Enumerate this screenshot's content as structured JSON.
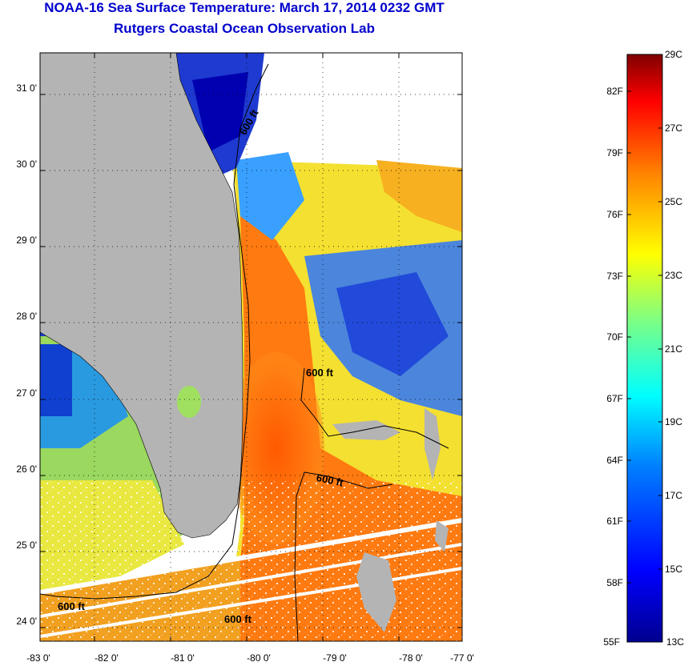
{
  "title": "NOAA-16 Sea Surface Temperature:  March 17, 2014 0232 GMT",
  "subtitle": "Rutgers Coastal Ocean Observation Lab",
  "map": {
    "lat_ticks": [
      "31 0'",
      "30 0'",
      "29 0'",
      "28 0'",
      "27 0'",
      "26 0'",
      "25 0'",
      "24 0'"
    ],
    "lon_ticks": [
      "-83 0'",
      "-82 0'",
      "-81 0'",
      "-80 0'",
      "-79 0'",
      "-78 0'",
      "-77 0'"
    ],
    "lat_range": [
      23.8,
      31.5
    ],
    "lon_range": [
      -83.0,
      -76.85
    ],
    "grid": true,
    "land_color": "#b4b4b4",
    "contour_labels": [
      "600 ft",
      "600 ft",
      "600 ft",
      "600 ft",
      "600 ft"
    ]
  },
  "colorbar": {
    "celsius": [
      "29C",
      "27C",
      "25C",
      "23C",
      "21C",
      "19C",
      "17C",
      "15C",
      "13C"
    ],
    "fahrenheit": [
      "82F",
      "79F",
      "76F",
      "73F",
      "70F",
      "67F",
      "64F",
      "61F",
      "58F",
      "55F"
    ],
    "range_c": [
      13,
      29
    ],
    "colors": [
      "#00008f",
      "#0000ff",
      "#0080ff",
      "#00ffff",
      "#80ff80",
      "#ffff00",
      "#ff8000",
      "#ff0000",
      "#800000"
    ]
  }
}
